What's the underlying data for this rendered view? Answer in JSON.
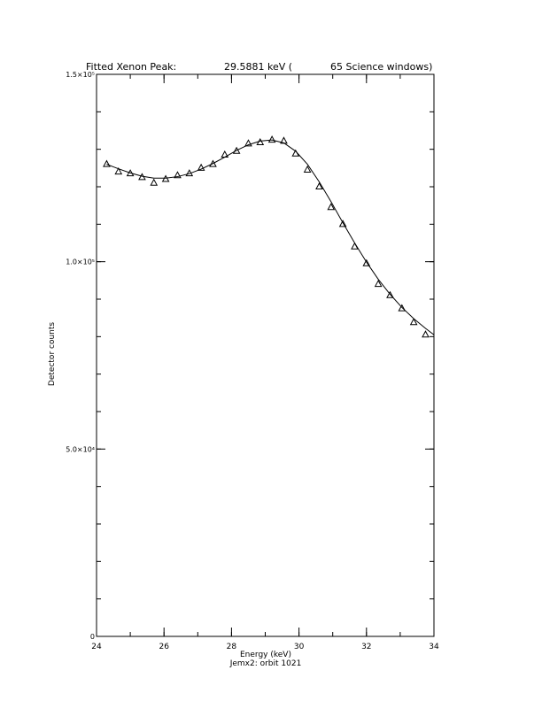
{
  "chart_data": {
    "type": "scatter",
    "title": "Fitted Xenon Peak:",
    "title_value": "29.5881 keV (",
    "title_windows": "65 Science windows)",
    "xlabel": "Energy (keV)",
    "xlabel2": "Jemx2: orbit 1021",
    "ylabel": "Detector counts",
    "xlim": [
      24,
      34
    ],
    "ylim": [
      0,
      150000
    ],
    "x_ticks": [
      {
        "v": 24,
        "label": "24"
      },
      {
        "v": 26,
        "label": "26"
      },
      {
        "v": 28,
        "label": "28"
      },
      {
        "v": 30,
        "label": "30"
      },
      {
        "v": 32,
        "label": "32"
      },
      {
        "v": 34,
        "label": "34"
      }
    ],
    "x_minor_step": 1,
    "y_ticks": [
      {
        "v": 0,
        "label": "0"
      },
      {
        "v": 50000,
        "label": "5.0×10⁴"
      },
      {
        "v": 100000,
        "label": "1.0×10⁵"
      },
      {
        "v": 150000,
        "label": "1.5×10⁵"
      }
    ],
    "y_minor_step": 10000,
    "series": [
      {
        "marker": "triangle",
        "x": [
          24.3,
          24.65,
          25.0,
          25.35,
          25.7,
          26.05,
          26.4,
          26.75,
          27.1,
          27.45,
          27.8,
          28.15,
          28.5,
          28.85,
          29.2,
          29.55,
          29.9,
          30.25,
          30.6,
          30.95,
          31.3,
          31.65,
          32.0,
          32.35,
          32.7,
          33.05,
          33.4,
          33.75
        ],
        "y": [
          126000,
          124000,
          123500,
          122500,
          121000,
          122000,
          123000,
          123500,
          125000,
          126000,
          128500,
          129500,
          131500,
          131800,
          132500,
          132200,
          128800,
          124500,
          120000,
          114500,
          110000,
          104000,
          99500,
          94000,
          91000,
          87500,
          83800,
          80500
        ]
      },
      {
        "style": "line",
        "x": [
          24.3,
          24.65,
          25.0,
          25.35,
          25.7,
          26.05,
          26.4,
          26.75,
          27.1,
          27.45,
          27.8,
          28.15,
          28.5,
          28.85,
          29.2,
          29.55,
          29.9,
          30.25,
          30.6,
          30.95,
          31.3,
          31.65,
          32.0,
          32.35,
          32.7,
          33.05,
          33.4,
          33.75,
          34.0
        ],
        "y": [
          126000,
          124800,
          123700,
          122800,
          122300,
          122300,
          122700,
          123500,
          124700,
          126200,
          127900,
          129700,
          131200,
          132200,
          132500,
          131700,
          129500,
          126000,
          121300,
          116000,
          110400,
          105000,
          99900,
          95300,
          91300,
          87800,
          84800,
          82200,
          80500
        ]
      }
    ]
  }
}
